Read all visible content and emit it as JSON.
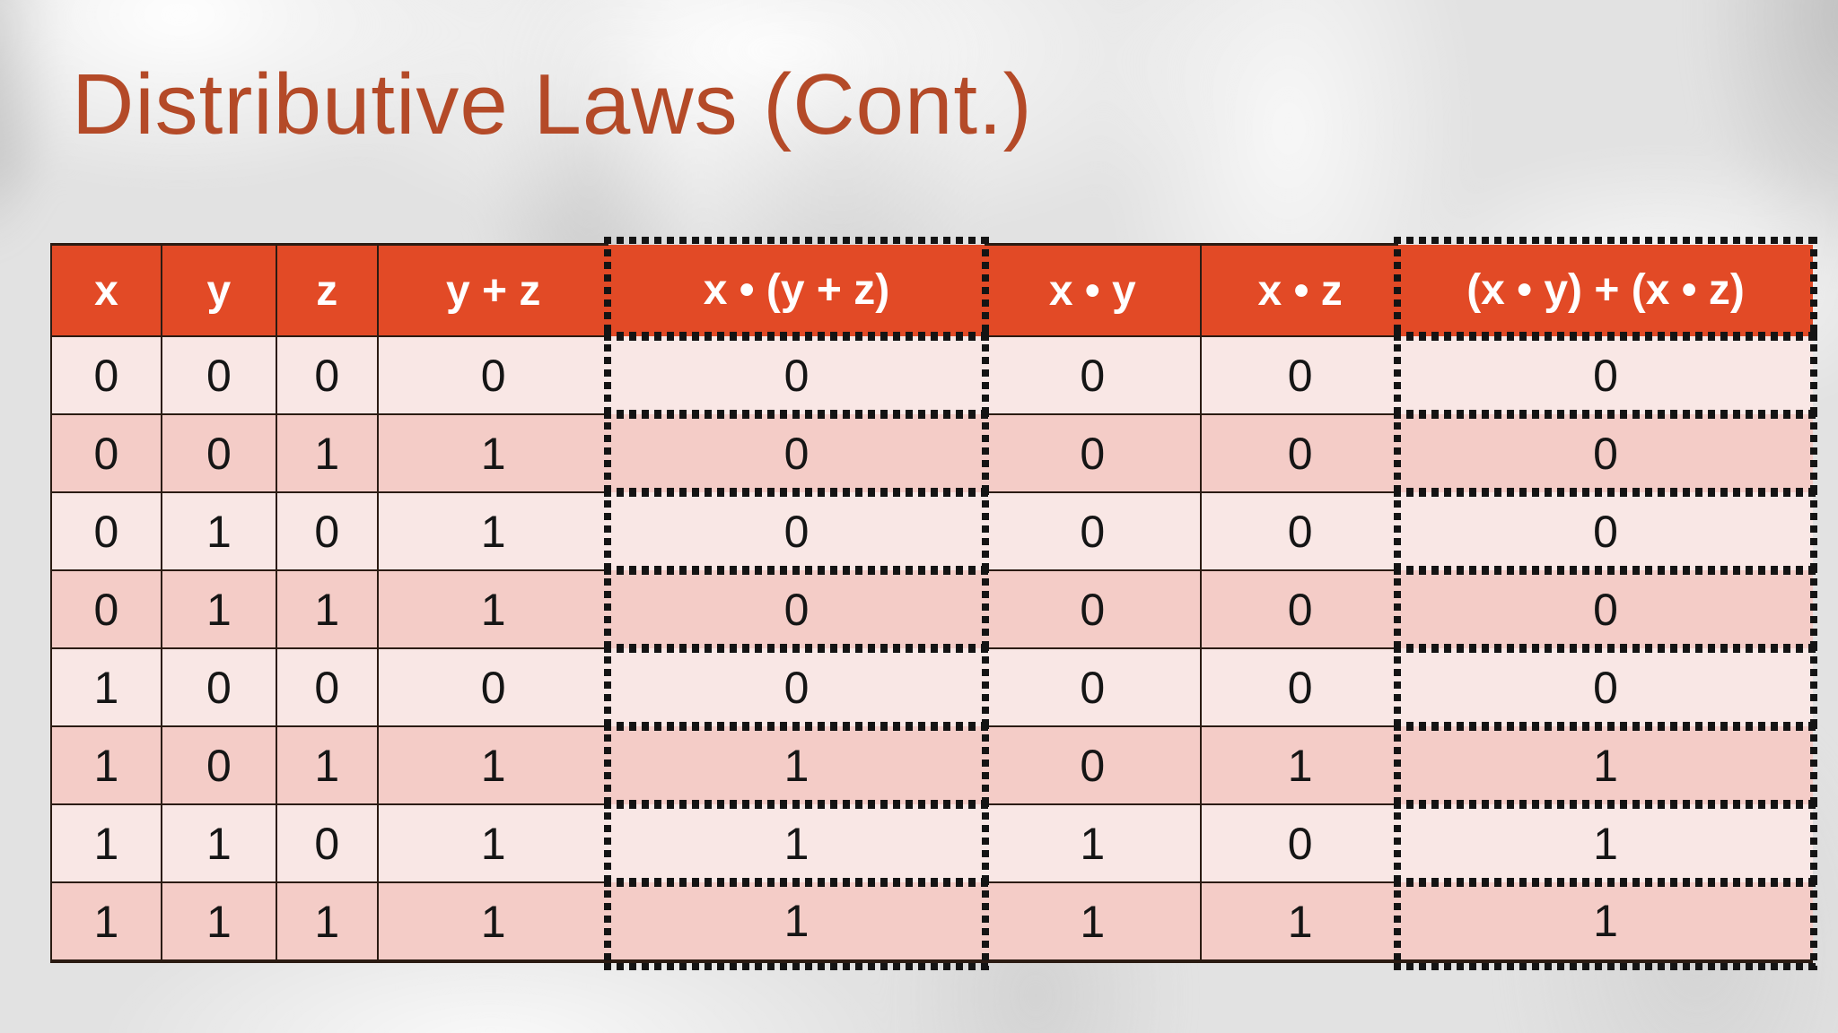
{
  "slide": {
    "title": "Distributive Laws (Cont.)"
  },
  "table": {
    "columns": [
      {
        "label": "x",
        "highlighted": false
      },
      {
        "label": "y",
        "highlighted": false
      },
      {
        "label": "z",
        "highlighted": false
      },
      {
        "label": "y + z",
        "highlighted": false
      },
      {
        "label": "x • (y + z)",
        "highlighted": true
      },
      {
        "label": "x • y",
        "highlighted": false
      },
      {
        "label": "x • z",
        "highlighted": false
      },
      {
        "label": "(x • y) + (x • z)",
        "highlighted": true
      }
    ],
    "rows": [
      [
        "0",
        "0",
        "0",
        "0",
        "0",
        "0",
        "0",
        "0"
      ],
      [
        "0",
        "0",
        "1",
        "1",
        "0",
        "0",
        "0",
        "0"
      ],
      [
        "0",
        "1",
        "0",
        "1",
        "0",
        "0",
        "0",
        "0"
      ],
      [
        "0",
        "1",
        "1",
        "1",
        "0",
        "0",
        "0",
        "0"
      ],
      [
        "1",
        "0",
        "0",
        "0",
        "0",
        "0",
        "0",
        "0"
      ],
      [
        "1",
        "0",
        "1",
        "1",
        "1",
        "0",
        "1",
        "1"
      ],
      [
        "1",
        "1",
        "0",
        "1",
        "1",
        "1",
        "0",
        "1"
      ],
      [
        "1",
        "1",
        "1",
        "1",
        "1",
        "1",
        "1",
        "1"
      ]
    ]
  },
  "colors": {
    "title": "#b44a28",
    "header_bg": "#e24a26",
    "header_text": "#ffffff",
    "row_light": "#f9e7e5",
    "row_dark": "#f4ccc7",
    "grid_border": "#2b1b12",
    "dotted_outline": "#141414"
  }
}
